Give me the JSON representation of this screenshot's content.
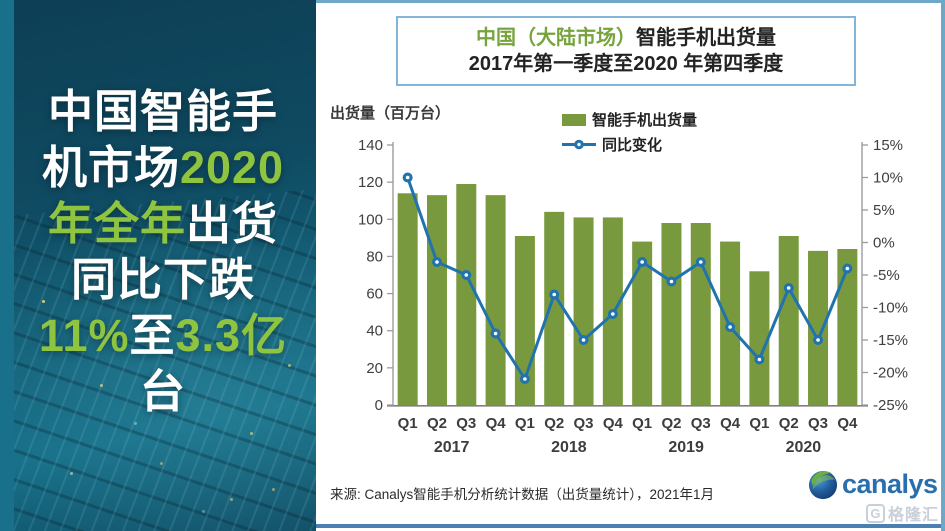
{
  "colors": {
    "bar": "#78993e",
    "line": "#2173ae",
    "title_green": "#76a33c",
    "sidebar_green": "#8ec43f",
    "frame_blue": "#6fa7c9",
    "bottom_rule": "#4a80b2"
  },
  "sidebar": {
    "headline_lines": [
      [
        {
          "t": "中国智能手",
          "g": false
        }
      ],
      [
        {
          "t": "机市场",
          "g": false
        },
        {
          "t": "2020",
          "g": true
        }
      ],
      [
        {
          "t": "年全年",
          "g": true
        },
        {
          "t": "出货",
          "g": false
        }
      ],
      [
        {
          "t": "同比下跌",
          "g": false
        }
      ],
      [
        {
          "t": "11%",
          "g": true
        },
        {
          "t": "至",
          "g": false
        },
        {
          "t": "3.3亿",
          "g": true
        }
      ],
      [
        {
          "t": "台",
          "g": false
        }
      ]
    ]
  },
  "header": {
    "title_green": "中国（大陆市场）",
    "title_black": "智能手机出货量",
    "subtitle": "2017年第一季度至2020 年第四季度"
  },
  "chart_data": {
    "type": "bar+line",
    "title": "中国（大陆市场）智能手机出货量 2017年第一季度至2020 年第四季度",
    "categories": [
      "Q1",
      "Q2",
      "Q3",
      "Q4",
      "Q1",
      "Q2",
      "Q3",
      "Q4",
      "Q1",
      "Q2",
      "Q3",
      "Q4",
      "Q1",
      "Q2",
      "Q3",
      "Q4"
    ],
    "year_groups": [
      "2017",
      "2018",
      "2019",
      "2020"
    ],
    "left_axis": {
      "label": "出货量（百万台）",
      "min": 0,
      "max": 140,
      "step": 20,
      "ticks": [
        140,
        120,
        100,
        80,
        60,
        40,
        20,
        0
      ]
    },
    "right_axis": {
      "min": -25,
      "max": 15,
      "step": 5,
      "ticks": [
        "15%",
        "10%",
        "5%",
        "0%",
        "-5%",
        "-10%",
        "-15%",
        "-20%",
        "-25%"
      ]
    },
    "series": [
      {
        "name": "智能手机出货量",
        "type": "bar",
        "axis": "left",
        "color": "#78993e",
        "values": [
          114,
          113,
          119,
          113,
          91,
          104,
          101,
          101,
          88,
          98,
          98,
          88,
          72,
          91,
          83,
          84
        ]
      },
      {
        "name": "同比变化",
        "type": "line",
        "axis": "right",
        "color": "#2173ae",
        "unit": "%",
        "values": [
          10,
          -3,
          -5,
          -14,
          -21,
          -8,
          -15,
          -11,
          -3,
          -6,
          -3,
          -13,
          -18,
          -7,
          -15,
          -4
        ]
      }
    ],
    "grid": false,
    "legend_position": "top-center"
  },
  "footer": {
    "source": "来源: Canalys智能手机分析统计数据（出货量统计），2021年1月",
    "logo_text": "canalys",
    "watermark": "格隆汇"
  }
}
